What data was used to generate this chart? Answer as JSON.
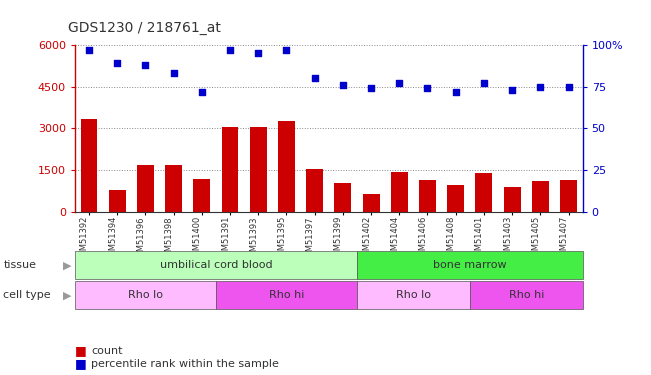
{
  "title": "GDS1230 / 218761_at",
  "samples": [
    "GSM51392",
    "GSM51394",
    "GSM51396",
    "GSM51398",
    "GSM51400",
    "GSM51391",
    "GSM51393",
    "GSM51395",
    "GSM51397",
    "GSM51399",
    "GSM51402",
    "GSM51404",
    "GSM51406",
    "GSM51408",
    "GSM51401",
    "GSM51403",
    "GSM51405",
    "GSM51407"
  ],
  "counts": [
    3350,
    800,
    1700,
    1700,
    1200,
    3050,
    3050,
    3250,
    1550,
    1050,
    650,
    1450,
    1150,
    950,
    1400,
    900,
    1100,
    1150
  ],
  "percentile_ranks": [
    97,
    89,
    88,
    83,
    72,
    97,
    95,
    97,
    80,
    76,
    74,
    77,
    74,
    72,
    77,
    73,
    75,
    75
  ],
  "ylim_left": [
    0,
    6000
  ],
  "ylim_right": [
    0,
    100
  ],
  "yticks_left": [
    0,
    1500,
    3000,
    4500,
    6000
  ],
  "yticks_right": [
    0,
    25,
    50,
    75,
    100
  ],
  "bar_color": "#cc0000",
  "dot_color": "#0000cc",
  "tissue_labels": [
    {
      "text": "umbilical cord blood",
      "start": 0,
      "end": 9,
      "color": "#bbffbb"
    },
    {
      "text": "bone marrow",
      "start": 10,
      "end": 17,
      "color": "#44ee44"
    }
  ],
  "cell_type_labels": [
    {
      "text": "Rho lo",
      "start": 0,
      "end": 4,
      "color": "#ffbbff"
    },
    {
      "text": "Rho hi",
      "start": 5,
      "end": 9,
      "color": "#ee55ee"
    },
    {
      "text": "Rho lo",
      "start": 10,
      "end": 13,
      "color": "#ffbbff"
    },
    {
      "text": "Rho hi",
      "start": 14,
      "end": 17,
      "color": "#ee55ee"
    }
  ],
  "background_fig": "#ffffff",
  "background_plot": "#ffffff",
  "grid_color": "#888888",
  "label_row1": "tissue",
  "label_row2": "cell type",
  "label_count": "count",
  "label_pct": "percentile rank within the sample",
  "legend_count_color": "#cc0000",
  "legend_pct_color": "#0000cc"
}
